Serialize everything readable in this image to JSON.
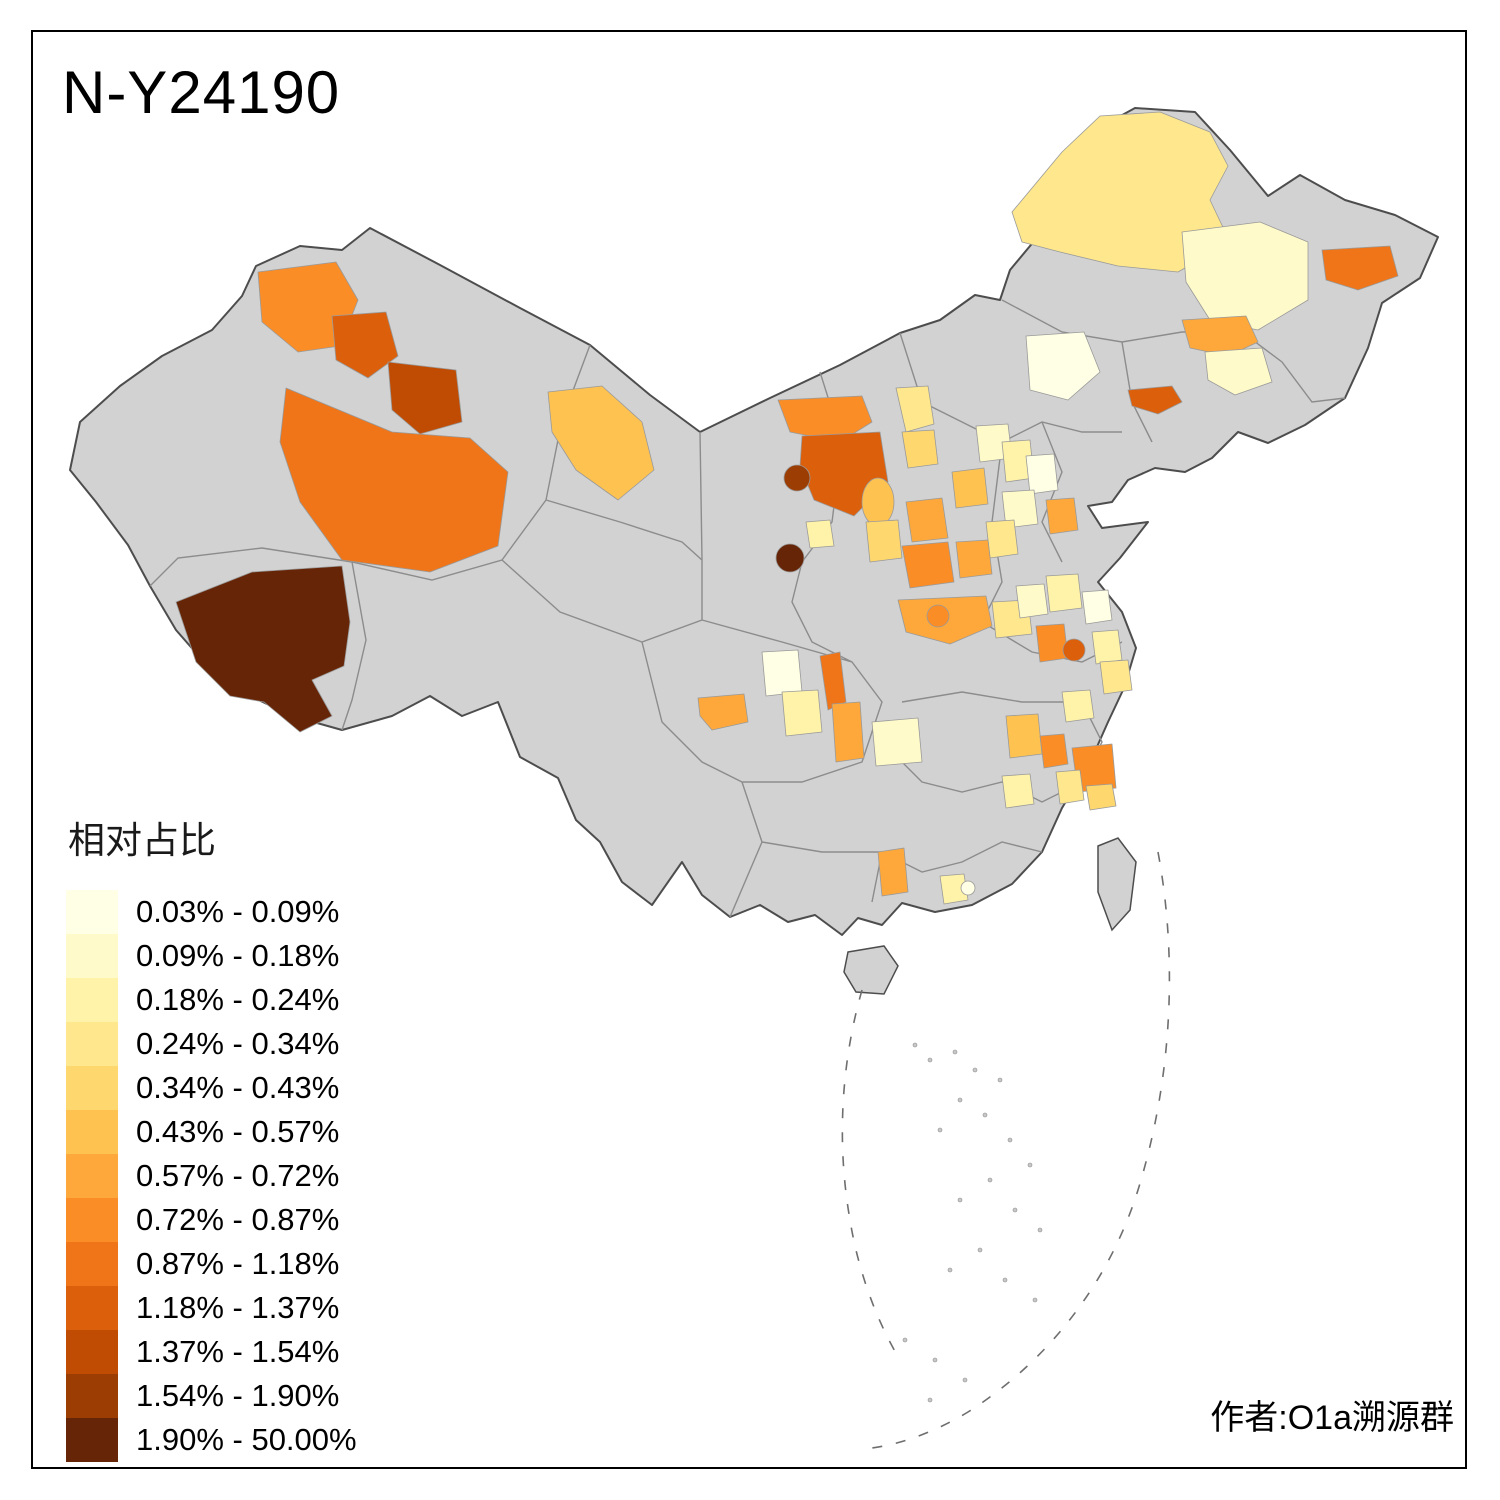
{
  "title": "N-Y24190",
  "footer": {
    "author": "作者:O1a溯源群"
  },
  "legend": {
    "title": "相对占比",
    "classes": [
      {
        "range": "0.03% - 0.09%",
        "color": "#FFFFE5"
      },
      {
        "range": "0.09% - 0.18%",
        "color": "#FFFAC9"
      },
      {
        "range": "0.18% - 0.24%",
        "color": "#FEF3A8"
      },
      {
        "range": "0.24% - 0.34%",
        "color": "#FEE78C"
      },
      {
        "range": "0.34% - 0.43%",
        "color": "#FED76E"
      },
      {
        "range": "0.43% - 0.57%",
        "color": "#FEC251"
      },
      {
        "range": "0.57% - 0.72%",
        "color": "#FEA83B"
      },
      {
        "range": "0.72% - 0.87%",
        "color": "#FB8D26"
      },
      {
        "range": "0.87% - 1.18%",
        "color": "#F07518"
      },
      {
        "range": "1.18% - 1.37%",
        "color": "#DC5F0B"
      },
      {
        "range": "1.37% - 1.54%",
        "color": "#C04C03"
      },
      {
        "range": "1.54% - 1.90%",
        "color": "#9C3D03"
      },
      {
        "range": "1.90% - 50.00%",
        "color": "#662506"
      }
    ]
  },
  "map": {
    "no_data_color": "#D2D2D2",
    "outline_color": "#4D4D4D",
    "inner_border_color": "#8C8C8C"
  }
}
